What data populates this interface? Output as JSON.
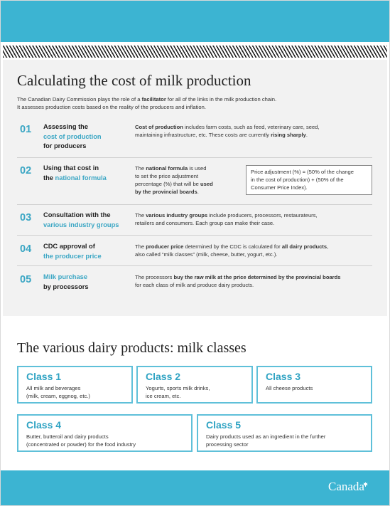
{
  "heading": "Calculating the cost of milk production",
  "intro": {
    "line1_a": "The Canadian Dairy Commission plays the role of a ",
    "line1_b": "facilitator",
    "line1_c": " for all of the links in the milk production chain.",
    "line2": "It assesses production costs based on the reality of the producers and inflation."
  },
  "steps": [
    {
      "number": "01",
      "title_a": "Assessing the",
      "title_hl": "cost of production",
      "title_b": "for producers",
      "desc_b1": "Cost of production",
      "desc_t1": " includes farm costs, such as feed, veterinary care, seed,",
      "desc_t2": "maintaining infrastructure, etc. These costs are currently ",
      "desc_b2": "rising sharply",
      "desc_t3": "."
    },
    {
      "number": "02",
      "title_a": "Using that cost in",
      "title_pre": "the ",
      "title_hl": "national formula",
      "desc_t1": "The ",
      "desc_b1": "national formula",
      "desc_t2": " is used",
      "desc_t3": "to set the price adjustment",
      "desc_t4": "percentage (%) that will be ",
      "desc_b2": "used",
      "desc_b3": "by the provincial boards",
      "desc_t5": ".",
      "formula_line1": "Price adjustment (%) = (50% of the change",
      "formula_line2": "in the cost of production) + (50% of the",
      "formula_line3": "Consumer Price Index)."
    },
    {
      "number": "03",
      "title_a": "Consultation with the",
      "title_hl": "various industry groups",
      "desc_t1": "The ",
      "desc_b1": "various industry groups",
      "desc_t2": " include producers, processors, restaurateurs,",
      "desc_t3": "retailers and consumers. Each group can make their case."
    },
    {
      "number": "04",
      "title_a": "CDC approval of",
      "title_hl": "the producer price",
      "desc_t1": "The ",
      "desc_b1": "producer price",
      "desc_t2": " determined by the CDC is calculated for ",
      "desc_b2": "all dairy products",
      "desc_t3": ",",
      "desc_t4": "also called “milk classes” (milk, cheese, butter, yogurt, etc.)."
    },
    {
      "number": "05",
      "title_hl": "Milk purchase",
      "title_b": "by processors",
      "desc_t1": "The processors ",
      "desc_b1": "buy the raw milk at the price determined by the provincial boards",
      "desc_t2": "for each class of milk and produce dairy products."
    }
  ],
  "heading2": "The various dairy products: milk classes",
  "classes": [
    {
      "name": "Class 1",
      "line1": "All milk and beverages",
      "line2": "(milk, cream, eggnog, etc.)"
    },
    {
      "name": "Class 2",
      "line1": "Yogurts, sports milk drinks,",
      "line2": "ice cream, etc."
    },
    {
      "name": "Class 3",
      "line1": "All cheese products",
      "line2": ""
    },
    {
      "name": "Class 4",
      "line1": "Butter, butteroil and dairy products",
      "line2": "(concentrated or powder) for the food industry"
    },
    {
      "name": "Class 5",
      "line1": "Dairy products used as an ingredient in the further",
      "line2": "processing sector"
    }
  ],
  "wordmark": "Canada",
  "colors": {
    "accent": "#3cb4d2",
    "accent_text": "#3aa6c4",
    "section_bg": "#f2f2f2"
  }
}
